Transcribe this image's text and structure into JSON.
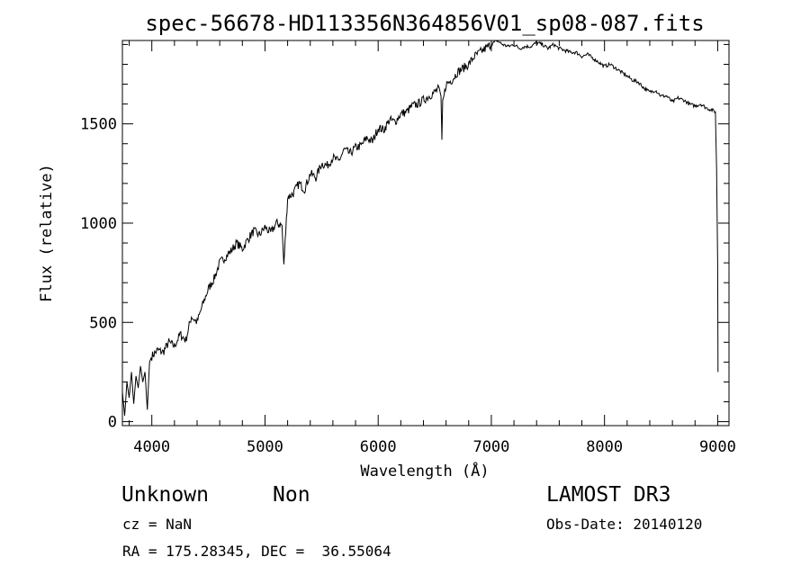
{
  "chart_data": {
    "type": "line",
    "title": "spec-56678-HD113356N364856V01_sp08-087.fits",
    "xlabel": "Wavelength (Å)",
    "ylabel": "Flux (relative)",
    "xlim": [
      3740,
      9100
    ],
    "ylim": [
      -20,
      1920
    ],
    "x_ticks": [
      4000,
      5000,
      6000,
      7000,
      8000,
      9000
    ],
    "y_ticks": [
      0,
      500,
      1000,
      1500
    ],
    "grid": false,
    "series": [
      {
        "x": [
          3740,
          3760,
          3780,
          3800,
          3820,
          3840,
          3860,
          3880,
          3900,
          3920,
          3940,
          3960,
          3980,
          4000,
          4050,
          4100,
          4150,
          4200,
          4250,
          4300,
          4350,
          4400,
          4450,
          4500,
          4550,
          4600,
          4650,
          4700,
          4750,
          4800,
          4850,
          4900,
          4950,
          5000,
          5050,
          5100,
          5150,
          5167,
          5200,
          5250,
          5300,
          5350,
          5400,
          5450,
          5500,
          5550,
          5600,
          5650,
          5700,
          5750,
          5800,
          5850,
          5900,
          5950,
          6000,
          6050,
          6100,
          6150,
          6200,
          6250,
          6300,
          6350,
          6400,
          6450,
          6500,
          6540,
          6555,
          6563,
          6570,
          6600,
          6650,
          6700,
          6750,
          6800,
          6850,
          6900,
          6950,
          7000,
          7050,
          7100,
          7150,
          7200,
          7250,
          7300,
          7350,
          7400,
          7450,
          7500,
          7550,
          7600,
          7650,
          7700,
          7750,
          7800,
          7850,
          7900,
          7950,
          8000,
          8050,
          8100,
          8150,
          8200,
          8250,
          8300,
          8350,
          8400,
          8450,
          8500,
          8550,
          8600,
          8650,
          8700,
          8750,
          8800,
          8850,
          8900,
          8950,
          8980,
          8990,
          9000,
          9003
        ],
        "y": [
          150,
          30,
          200,
          120,
          250,
          90,
          230,
          170,
          280,
          200,
          250,
          60,
          300,
          330,
          360,
          350,
          400,
          380,
          440,
          410,
          530,
          500,
          590,
          670,
          720,
          800,
          830,
          860,
          900,
          870,
          920,
          960,
          940,
          980,
          950,
          1000,
          990,
          790,
          1130,
          1150,
          1200,
          1170,
          1250,
          1230,
          1300,
          1290,
          1330,
          1310,
          1370,
          1350,
          1380,
          1390,
          1430,
          1410,
          1480,
          1470,
          1520,
          1510,
          1550,
          1560,
          1590,
          1600,
          1620,
          1640,
          1660,
          1680,
          1640,
          1420,
          1600,
          1700,
          1720,
          1760,
          1780,
          1800,
          1840,
          1860,
          1880,
          1900,
          1920,
          1900,
          1890,
          1900,
          1880,
          1890,
          1890,
          1910,
          1900,
          1880,
          1900,
          1880,
          1870,
          1860,
          1860,
          1840,
          1850,
          1830,
          1810,
          1790,
          1800,
          1780,
          1760,
          1740,
          1720,
          1710,
          1680,
          1660,
          1670,
          1640,
          1640,
          1610,
          1630,
          1620,
          1600,
          1590,
          1600,
          1580,
          1570,
          1560,
          1280,
          800,
          250
        ]
      }
    ]
  },
  "info": {
    "class_label": "Unknown",
    "subclass_label": "Non",
    "survey_label": "LAMOST DR3",
    "cz_label": "cz = NaN",
    "obs_date_label": "Obs-Date: 20140120",
    "coords_label": "RA = 175.28345, DEC =  36.55064"
  }
}
